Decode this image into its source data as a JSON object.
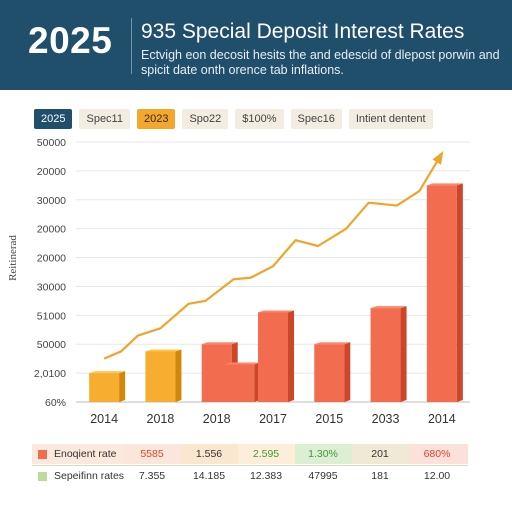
{
  "header": {
    "year": "2025",
    "title": "935 Special Deposit Interest Rates",
    "subtitle": "Ectvigh eon decosit hesits the and edescid of dlepost porwin and spicit date onth orence tab inflations."
  },
  "tabs": [
    {
      "label": "2025",
      "style": "active"
    },
    {
      "label": "Spec11",
      "style": "plain"
    },
    {
      "label": "2023",
      "style": "accent"
    },
    {
      "label": "Spo22",
      "style": "plain"
    },
    {
      "label": "$100%",
      "style": "plain"
    },
    {
      "label": "Spec16",
      "style": "plain"
    },
    {
      "label": "Intient dentent",
      "style": "plain"
    }
  ],
  "chart_data": {
    "type": "bar",
    "ylabel": "Reitinerad",
    "y_tick_labels": [
      "50000",
      "20000",
      "30000",
      "20000",
      "20000",
      "30000",
      "51000",
      "50000",
      "2,0100",
      "60%"
    ],
    "categories": [
      "2014",
      "2018",
      "2018",
      "2017",
      "2015",
      "2033",
      "2014"
    ],
    "ylim": [
      0,
      9
    ],
    "grid": true,
    "series": [
      {
        "kind": "bar",
        "color": "#f26c4f",
        "bars": [
          {
            "slot": 0,
            "value": 1.0,
            "color": "#f7ad2f"
          },
          {
            "slot": 1,
            "value": 1.75,
            "color": "#f7ad2f"
          },
          {
            "slot": 2,
            "value": 2.0,
            "color": "#f26c4f"
          },
          {
            "slot": 2.4,
            "value": 1.3,
            "color": "#f26c4f"
          },
          {
            "slot": 3,
            "value": 3.1,
            "color": "#f26c4f"
          },
          {
            "slot": 4,
            "value": 2.0,
            "color": "#f26c4f"
          },
          {
            "slot": 5,
            "value": 3.25,
            "color": "#f26c4f"
          },
          {
            "slot": 6,
            "value": 7.5,
            "color": "#f26c4f"
          }
        ]
      },
      {
        "kind": "line",
        "color": "#f0a52a",
        "points": [
          [
            0,
            1.5
          ],
          [
            0.3,
            1.75
          ],
          [
            0.6,
            2.3
          ],
          [
            1.0,
            2.55
          ],
          [
            1.5,
            3.4
          ],
          [
            1.8,
            3.5
          ],
          [
            2.3,
            4.25
          ],
          [
            2.6,
            4.3
          ],
          [
            3.0,
            4.7
          ],
          [
            3.4,
            5.6
          ],
          [
            3.8,
            5.4
          ],
          [
            4.3,
            6.0
          ],
          [
            4.7,
            6.9
          ],
          [
            5.2,
            6.8
          ],
          [
            5.6,
            7.3
          ],
          [
            6.0,
            8.6
          ]
        ]
      }
    ]
  },
  "table": {
    "rows": [
      {
        "name": "Enoqient rate",
        "swatch": "#f26c4f",
        "bg": "#fbe9dd",
        "cells": [
          {
            "text": "5585",
            "color": "#e0452f"
          },
          {
            "text": "1.556",
            "color": "#333333"
          },
          {
            "text": "2.595",
            "color": "#3e9a38"
          },
          {
            "text": "1.30%",
            "color": "#3e9a38"
          },
          {
            "text": "201",
            "color": "#333333"
          },
          {
            "text": "680%",
            "color": "#e0452f"
          }
        ]
      },
      {
        "name": "Sepeifinn rates",
        "swatch": "#b8dd9a",
        "bg": "#ffffff",
        "cells": [
          {
            "text": "7.355",
            "color": "#333333"
          },
          {
            "text": "14.185",
            "color": "#333333"
          },
          {
            "text": "12.383",
            "color": "#333333"
          },
          {
            "text": "47995",
            "color": "#333333"
          },
          {
            "text": "181",
            "color": "#333333"
          },
          {
            "text": "12.00",
            "color": "#333333"
          }
        ]
      }
    ],
    "column_colors": [
      "#fbe6dc",
      "#fbe6cf",
      "#fdeeda",
      "#dcefd2",
      "#efe9d6",
      "#fbe1da"
    ]
  }
}
